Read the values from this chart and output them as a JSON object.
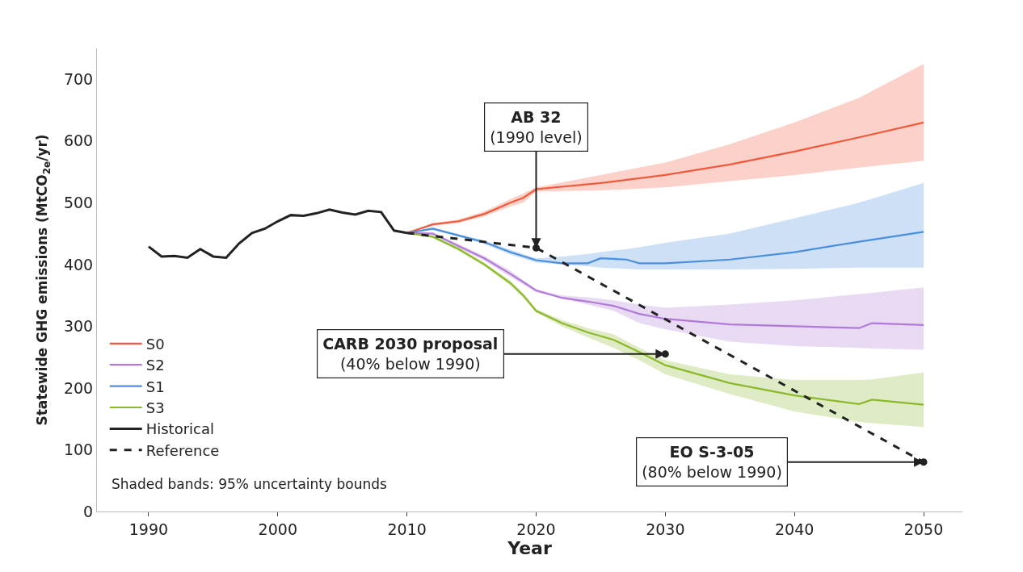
{
  "chart_data": {
    "type": "line",
    "xlabel": "Year",
    "ylabel": "Statewide GHG emissions (MtCO$_{2e}$/yr)",
    "xlim": [
      1986,
      2053
    ],
    "xticks": [
      1990,
      2000,
      2010,
      2020,
      2030,
      2040,
      2050
    ],
    "ylim": [
      0,
      750
    ],
    "yticks": [
      0,
      100,
      200,
      300,
      400,
      500,
      600,
      700
    ],
    "legend": "bottom left",
    "series": [
      {
        "name": "S0",
        "color": "#ef5a3c",
        "x": [
          2010,
          2012,
          2014,
          2016,
          2018,
          2019,
          2020,
          2025,
          2030,
          2035,
          2040,
          2045,
          2050
        ],
        "values": [
          451,
          465,
          470,
          482,
          500,
          508,
          522,
          532,
          545,
          562,
          583,
          606,
          630
        ],
        "lower": [
          451,
          463,
          467,
          478,
          494,
          500,
          518,
          520,
          525,
          535,
          545,
          557,
          568
        ],
        "upper": [
          451,
          467,
          473,
          486,
          506,
          515,
          525,
          545,
          565,
          595,
          630,
          670,
          725
        ]
      },
      {
        "name": "S2",
        "color": "#b07ad6",
        "x": [
          2010,
          2012,
          2014,
          2016,
          2018,
          2020,
          2022,
          2024,
          2026,
          2028,
          2030,
          2035,
          2040,
          2045,
          2046,
          2050
        ],
        "values": [
          451,
          450,
          430,
          410,
          385,
          358,
          346,
          340,
          333,
          320,
          312,
          303,
          300,
          297,
          305,
          302
        ],
        "lower": [
          451,
          448,
          427,
          406,
          380,
          355,
          345,
          335,
          325,
          305,
          295,
          275,
          268,
          265,
          264,
          262
        ],
        "upper": [
          451,
          452,
          433,
          414,
          390,
          360,
          350,
          347,
          342,
          335,
          330,
          335,
          342,
          352,
          354,
          363
        ]
      },
      {
        "name": "S1",
        "color": "#4a8fdc",
        "x": [
          2010,
          2012,
          2014,
          2016,
          2018,
          2020,
          2022,
          2024,
          2025,
          2027,
          2028,
          2030,
          2035,
          2040,
          2045,
          2050
        ],
        "values": [
          451,
          458,
          447,
          436,
          420,
          407,
          402,
          402,
          410,
          408,
          402,
          402,
          408,
          420,
          437,
          453
        ],
        "lower": [
          451,
          456,
          445,
          433,
          416,
          403,
          400,
          397,
          395,
          393,
          392,
          392,
          392,
          393,
          395,
          395
        ],
        "upper": [
          451,
          460,
          449,
          439,
          424,
          410,
          413,
          417,
          420,
          425,
          428,
          435,
          450,
          475,
          500,
          532
        ]
      },
      {
        "name": "S3",
        "color": "#8cb82b",
        "x": [
          2010,
          2012,
          2014,
          2016,
          2018,
          2019,
          2020,
          2022,
          2024,
          2026,
          2028,
          2030,
          2035,
          2040,
          2045,
          2046,
          2050
        ],
        "values": [
          451,
          445,
          425,
          400,
          370,
          350,
          325,
          305,
          290,
          278,
          258,
          237,
          208,
          188,
          174,
          181,
          173
        ],
        "lower": [
          451,
          443,
          422,
          397,
          366,
          346,
          322,
          300,
          282,
          265,
          245,
          222,
          190,
          162,
          145,
          143,
          137
        ],
        "upper": [
          451,
          447,
          428,
          403,
          374,
          354,
          328,
          310,
          297,
          287,
          265,
          245,
          222,
          213,
          213,
          214,
          225
        ]
      },
      {
        "name": "Historical",
        "color": "#222222",
        "x": [
          1990,
          1991,
          1992,
          1993,
          1994,
          1995,
          1996,
          1997,
          1998,
          1999,
          2000,
          2001,
          2002,
          2003,
          2004,
          2005,
          2006,
          2007,
          2008,
          2009,
          2010
        ],
        "values": [
          429,
          413,
          414,
          411,
          425,
          413,
          411,
          434,
          451,
          458,
          470,
          480,
          479,
          483,
          489,
          484,
          481,
          487,
          485,
          455,
          451
        ]
      },
      {
        "name": "Reference",
        "color": "#222222",
        "line_style": "dashed",
        "x": [
          2010,
          2020,
          2050
        ],
        "values": [
          451,
          427,
          80
        ]
      }
    ],
    "annotations": [
      {
        "text": "AB 32\n(1990 level)",
        "x": 2020,
        "y": 427
      },
      {
        "text": "CARB 2030 proposal\n(40% below 1990)",
        "x": 2030,
        "y": 255
      },
      {
        "text": "EO S-3-05\n(80% below 1990)",
        "x": 2050,
        "y": 80
      },
      "Shaded bands: 95% uncertainty bounds"
    ]
  }
}
